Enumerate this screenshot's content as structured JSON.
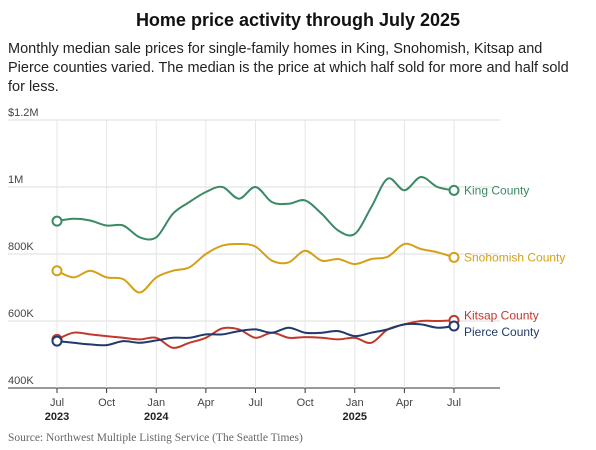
{
  "chart_data": {
    "type": "line",
    "title": "Home price activity through July 2025",
    "subtitle": "Monthly median sale prices for single-family homes in King, Snohomish, Kitsap and Pierce counties varied. The median is the price at which half sold for more and half sold for less.",
    "source": "Source: Northwest Multiple Listing Service (The Seattle Times)",
    "ylim": [
      400000,
      1200000
    ],
    "y_ticks": [
      {
        "value": 400000,
        "label": "400K"
      },
      {
        "value": 600000,
        "label": "600K"
      },
      {
        "value": 800000,
        "label": "800K"
      },
      {
        "value": 1000000,
        "label": "1M"
      },
      {
        "value": 1200000,
        "label": "$1.2M"
      }
    ],
    "x_ticks": [
      {
        "index": 0,
        "label": "Jul",
        "year": "2023"
      },
      {
        "index": 3,
        "label": "Oct",
        "year": ""
      },
      {
        "index": 6,
        "label": "Jan",
        "year": "2024"
      },
      {
        "index": 9,
        "label": "Apr",
        "year": ""
      },
      {
        "index": 12,
        "label": "Jul",
        "year": ""
      },
      {
        "index": 15,
        "label": "Oct",
        "year": ""
      },
      {
        "index": 18,
        "label": "Jan",
        "year": "2025"
      },
      {
        "index": 21,
        "label": "Apr",
        "year": ""
      },
      {
        "index": 24,
        "label": "Jul",
        "year": ""
      }
    ],
    "x": [
      "2023-07",
      "2023-08",
      "2023-09",
      "2023-10",
      "2023-11",
      "2023-12",
      "2024-01",
      "2024-02",
      "2024-03",
      "2024-04",
      "2024-05",
      "2024-06",
      "2024-07",
      "2024-08",
      "2024-09",
      "2024-10",
      "2024-11",
      "2024-12",
      "2025-01",
      "2025-02",
      "2025-03",
      "2025-04",
      "2025-05",
      "2025-06",
      "2025-07"
    ],
    "grid": true,
    "series": [
      {
        "name": "King County",
        "color": "#3a8a64",
        "values": [
          898000,
          905000,
          900000,
          885000,
          885000,
          850000,
          850000,
          920000,
          955000,
          985000,
          1000000,
          965000,
          1000000,
          955000,
          950000,
          960000,
          920000,
          870000,
          860000,
          940000,
          1025000,
          990000,
          1030000,
          1000000,
          990000
        ]
      },
      {
        "name": "Snohomish County",
        "color": "#d4a017",
        "values": [
          750000,
          730000,
          750000,
          730000,
          725000,
          685000,
          730000,
          750000,
          760000,
          800000,
          825000,
          830000,
          822000,
          780000,
          775000,
          810000,
          780000,
          785000,
          770000,
          785000,
          792000,
          830000,
          815000,
          805000,
          790000
        ]
      },
      {
        "name": "Kitsap County",
        "color": "#c0392b",
        "values": [
          545000,
          565000,
          560000,
          555000,
          550000,
          545000,
          550000,
          520000,
          535000,
          550000,
          578000,
          575000,
          550000,
          565000,
          550000,
          552000,
          550000,
          545000,
          550000,
          535000,
          575000,
          590000,
          600000,
          600000,
          602000
        ]
      },
      {
        "name": "Pierce County",
        "color": "#1f3a6b",
        "values": [
          540000,
          535000,
          530000,
          528000,
          540000,
          535000,
          542000,
          550000,
          550000,
          560000,
          560000,
          570000,
          575000,
          565000,
          580000,
          565000,
          565000,
          570000,
          555000,
          565000,
          575000,
          590000,
          590000,
          580000,
          585000
        ]
      }
    ]
  }
}
